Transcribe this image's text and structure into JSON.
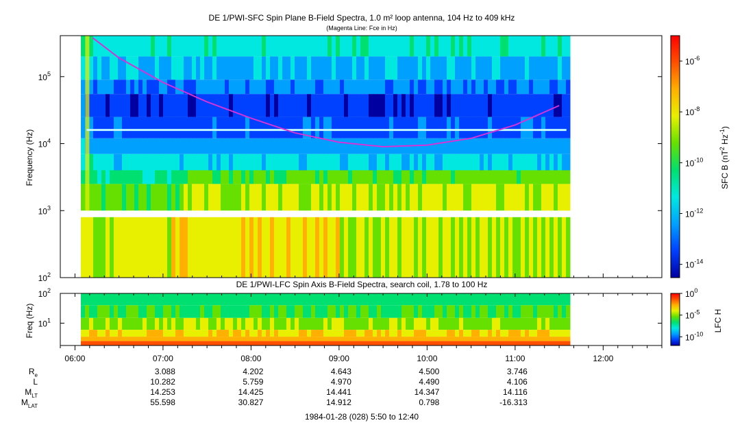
{
  "colors": {
    "fce_line": "#d633d6",
    "gap": "#ffffff",
    "background": "#ffffff",
    "colormap": [
      "#0000a0",
      "#0040ff",
      "#00a0ff",
      "#00e8e0",
      "#00e070",
      "#66e000",
      "#e8f000",
      "#ffb000",
      "#ff5000",
      "#ff0000"
    ]
  },
  "chart_data": [
    {
      "type": "heatmap",
      "title": "DE 1/PWI-SFC  Spin Plane B-Field Spectra, 1.0 m² loop antenna, 104 Hz to 409 kHz",
      "subtitle": "(Magenta Line: Fce in Hz)",
      "ylabel": "Frequency (Hz)",
      "yscale": "log",
      "ylim": [
        100,
        409000
      ],
      "yticks": [
        {
          "value": 100,
          "base": "10",
          "exp": "2"
        },
        {
          "value": 1000,
          "base": "10",
          "exp": "3"
        },
        {
          "value": 10000,
          "base": "10",
          "exp": "4"
        },
        {
          "value": 100000,
          "base": "10",
          "exp": "5"
        }
      ],
      "xlim": [
        "05:50",
        "12:40"
      ],
      "data_coverage": [
        "06:04",
        "11:35"
      ],
      "colorbar": {
        "label": "SFC B (nT",
        "label_sup1": "2",
        "label_mid": " Hz",
        "label_sup2": "-1",
        "label_end": ")",
        "scale": "log",
        "range": [
          3e-15,
          1e-05
        ],
        "ticks": [
          {
            "value": 1e-06,
            "base": "10",
            "exp": "-6"
          },
          {
            "value": 1e-08,
            "base": "10",
            "exp": "-8"
          },
          {
            "value": 1e-10,
            "base": "10",
            "exp": "-10"
          },
          {
            "value": 1e-12,
            "base": "10",
            "exp": "-12"
          },
          {
            "value": 1e-14,
            "base": "10",
            "exp": "-14"
          }
        ]
      },
      "series": [
        {
          "name": "Fce",
          "type": "line",
          "x": [
            "06:12",
            "06:30",
            "07:00",
            "07:30",
            "08:00",
            "08:30",
            "09:00",
            "09:30",
            "10:00",
            "10:30",
            "11:00",
            "11:30"
          ],
          "y": [
            380000,
            190000,
            82000,
            42000,
            24000,
            14500,
            10500,
            9000,
            9500,
            12000,
            19000,
            37000
          ]
        }
      ],
      "features": [
        {
          "name": "white band",
          "freq_hz": 16000
        },
        {
          "name": "data gap",
          "freq_hz": [
            800,
            1000
          ]
        }
      ]
    },
    {
      "type": "heatmap",
      "title": "DE 1/PWI-LFC  Spin Axis B-Field Spectra, search coil, 1.78 to 100 Hz",
      "ylabel": "Freq (Hz)",
      "yscale": "log",
      "ylim": [
        1.78,
        100
      ],
      "yticks": [
        {
          "value": 10,
          "base": "10",
          "exp": "1"
        },
        {
          "value": 100,
          "base": "10",
          "exp": "2"
        }
      ],
      "xlim": [
        "05:50",
        "12:40"
      ],
      "data_coverage": [
        "06:04",
        "11:35"
      ],
      "colorbar": {
        "label": "LFC H",
        "scale": "log",
        "range": [
          1e-12,
          1
        ],
        "ticks": [
          {
            "value": 1,
            "base": "10",
            "exp": "0"
          },
          {
            "value": 1e-05,
            "base": "10",
            "exp": "-5"
          },
          {
            "value": 1e-10,
            "base": "10",
            "exp": "-10"
          }
        ]
      }
    }
  ],
  "time_axis": {
    "ticks": [
      "06:00",
      "07:00",
      "08:00",
      "09:00",
      "10:00",
      "11:00",
      "12:00"
    ],
    "caption": "1984-01-28 (028) 5:50 to 12:40"
  },
  "ephemeris": {
    "rows": [
      {
        "label": "R",
        "sub": "e",
        "values": [
          "3.088",
          "4.202",
          "4.643",
          "4.500",
          "3.746"
        ]
      },
      {
        "label": "L",
        "sub": "",
        "values": [
          "10.282",
          "5.759",
          "4.970",
          "4.490",
          "4.106"
        ]
      },
      {
        "label": "M",
        "sub": "LT",
        "values": [
          "14.253",
          "14.425",
          "14.441",
          "14.347",
          "14.116"
        ]
      },
      {
        "label": "M",
        "sub": "LAT",
        "values": [
          "55.598",
          "30.827",
          "14.912",
          "0.798",
          "-16.313"
        ]
      }
    ],
    "times": [
      "07:00",
      "08:00",
      "09:00",
      "10:00",
      "11:00"
    ]
  }
}
